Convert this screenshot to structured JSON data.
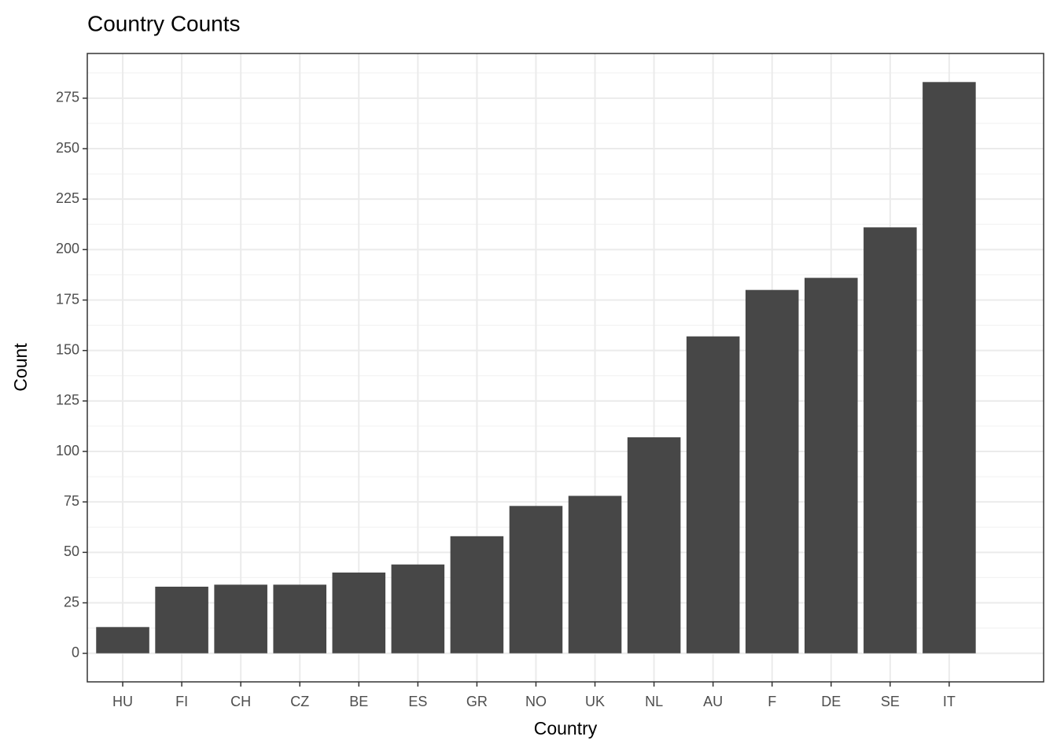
{
  "chart_data": {
    "type": "bar",
    "title": "Country Counts",
    "x_label": "Country",
    "y_label": "Count",
    "categories": [
      "HU",
      "FI",
      "CH",
      "CZ",
      "BE",
      "ES",
      "GR",
      "NO",
      "UK",
      "NL",
      "AU",
      "F",
      "DE",
      "SE",
      "IT"
    ],
    "values": [
      13,
      33,
      34,
      34,
      40,
      44,
      58,
      73,
      78,
      107,
      157,
      180,
      186,
      211,
      283
    ],
    "color": "#474747",
    "ylim": [
      -14.15,
      297.15
    ],
    "yticks": [
      0,
      25,
      50,
      75,
      100,
      125,
      150,
      175,
      200,
      225,
      250,
      275
    ],
    "yminorticks": [
      12.5,
      37.5,
      62.5,
      87.5,
      112.5,
      137.5,
      162.5,
      187.5,
      212.5,
      237.5,
      262.5,
      287.5
    ],
    "grid": true
  }
}
